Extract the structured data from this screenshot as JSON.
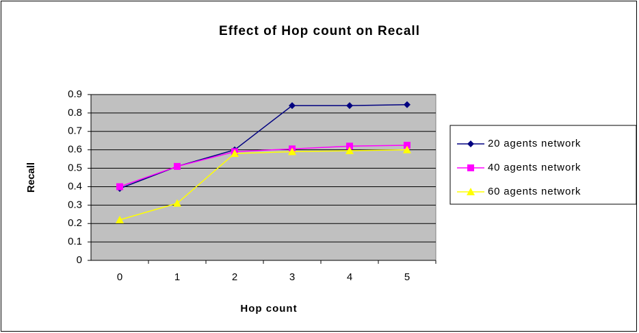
{
  "chart_data": {
    "type": "line",
    "title": "Effect of Hop count on Recall",
    "x_label": "Hop count",
    "y_label": "Recall",
    "categories": [
      "0",
      "1",
      "2",
      "3",
      "4",
      "5"
    ],
    "series": [
      {
        "name": "20 agents network",
        "color": "#000080",
        "marker": "diamond",
        "values": [
          0.39,
          0.51,
          0.6,
          0.84,
          0.84,
          0.845
        ]
      },
      {
        "name": "40 agents network",
        "color": "#ff00ff",
        "marker": "square",
        "values": [
          0.4,
          0.51,
          0.59,
          0.605,
          0.62,
          0.625
        ]
      },
      {
        "name": "60 agents network",
        "color": "#ffff00",
        "marker": "triangle",
        "values": [
          0.22,
          0.31,
          0.58,
          0.59,
          0.595,
          0.6
        ]
      }
    ],
    "ylim": [
      0,
      0.9
    ],
    "yticks": [
      0,
      0.1,
      0.2,
      0.3,
      0.4,
      0.5,
      0.6,
      0.7,
      0.8,
      0.9
    ],
    "grid": true,
    "plot_background": "#c0c0c0",
    "legend": "right"
  }
}
